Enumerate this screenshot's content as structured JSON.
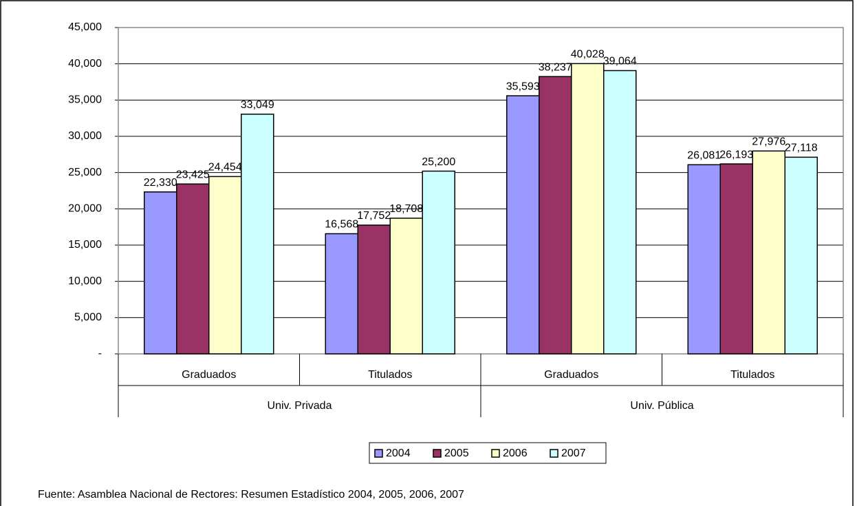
{
  "chart_data": {
    "type": "bar",
    "groups": [
      {
        "name": "Univ. Privada",
        "categories": [
          "Graduados",
          "Titulados"
        ]
      },
      {
        "name": "Univ. Pública",
        "categories": [
          "Graduados",
          "Titulados"
        ]
      }
    ],
    "series": [
      {
        "name": "2004",
        "color": "#9999ff",
        "values": [
          22330,
          16568,
          35593,
          26081
        ],
        "value_labels": [
          "22,330",
          "16,568",
          "35,593",
          "26,081"
        ]
      },
      {
        "name": "2005",
        "color": "#993366",
        "values": [
          23425,
          17752,
          38237,
          26193
        ],
        "value_labels": [
          "23,425",
          "17,752",
          "38,237",
          "26,193"
        ]
      },
      {
        "name": "2006",
        "color": "#ffffcc",
        "values": [
          24454,
          18708,
          40028,
          27976
        ],
        "value_labels": [
          "24,454",
          "18,708",
          "40,028",
          "27,976"
        ]
      },
      {
        "name": "2007",
        "color": "#ccffff",
        "values": [
          33049,
          25200,
          39064,
          27118
        ],
        "value_labels": [
          "33,049",
          "25,200",
          "39,064",
          "27,118"
        ]
      }
    ],
    "ylim": [
      0,
      45000
    ],
    "yticks": [
      {
        "value": 0,
        "label": "-"
      },
      {
        "value": 5000,
        "label": "5,000"
      },
      {
        "value": 10000,
        "label": "10,000"
      },
      {
        "value": 15000,
        "label": "15,000"
      },
      {
        "value": 20000,
        "label": "20,000"
      },
      {
        "value": 25000,
        "label": "25,000"
      },
      {
        "value": 30000,
        "label": "30,000"
      },
      {
        "value": 35000,
        "label": "35,000"
      },
      {
        "value": 40000,
        "label": "40,000"
      },
      {
        "value": 45000,
        "label": "45,000"
      }
    ],
    "grid": true,
    "legend": "bottom",
    "source": "Fuente: Asamblea Nacional de Rectores: Resumen Estadístico 2004, 2005, 2006, 2007"
  }
}
